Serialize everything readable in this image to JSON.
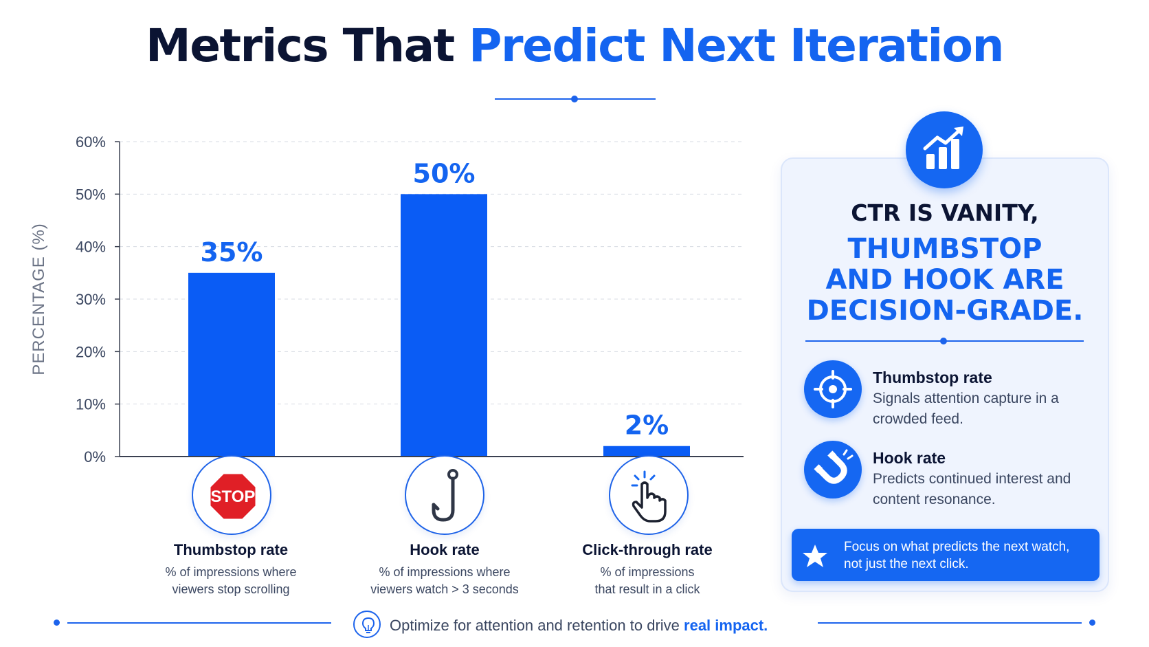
{
  "title": {
    "part1": "Metrics That ",
    "part2": "Predict Next Iteration"
  },
  "chart_data": {
    "type": "bar",
    "categories": [
      "Thumbstop rate",
      "Hook rate",
      "Click-through rate"
    ],
    "values": [
      35,
      50,
      2
    ],
    "data_labels": [
      "35%",
      "50%",
      "2%"
    ],
    "ylabel": "PERCENTAGE (%)",
    "ylim": [
      0,
      60
    ],
    "yticks": [
      0,
      10,
      20,
      30,
      40,
      50,
      60
    ],
    "ytick_labels": [
      "0%",
      "10%",
      "20%",
      "30%",
      "40%",
      "50%",
      "60%"
    ],
    "grid": true,
    "bar_color": "#0a5cf5"
  },
  "categories_info": [
    {
      "name": "Thumbstop rate",
      "desc1": "% of impressions where",
      "desc2": "viewers stop scrolling",
      "icon": "stop-sign-icon"
    },
    {
      "name": "Hook rate",
      "desc1": "% of impressions where",
      "desc2": "viewers watch > 3 seconds",
      "icon": "fish-hook-icon"
    },
    {
      "name": "Click-through rate",
      "desc1": "% of impressions",
      "desc2": "that result in a click",
      "icon": "pointer-click-icon"
    }
  ],
  "stop_sign_text": "STOP",
  "panel": {
    "badge_icon": "growth-chart-icon",
    "heading1": "CTR IS VANITY,",
    "heading2": "THUMBSTOP\nAND HOOK ARE\nDECISION-GRADE.",
    "features": [
      {
        "title": "Thumbstop rate",
        "desc": "Signals attention capture in a crowded feed.",
        "icon": "target-icon"
      },
      {
        "title": "Hook rate",
        "desc": "Predicts continued interest and content resonance.",
        "icon": "magnet-icon"
      }
    ],
    "callout": {
      "text": "Focus on what predicts the next watch, not just the next click.",
      "icon": "star-icon"
    }
  },
  "footer": {
    "text": "Optimize for attention and retention to drive ",
    "emphasis": "real impact.",
    "icon": "lightbulb-icon"
  },
  "colors": {
    "accent": "#1464f0",
    "dark": "#0b1433",
    "muted": "#3a4660",
    "panel_bg": "#eff4fe"
  }
}
